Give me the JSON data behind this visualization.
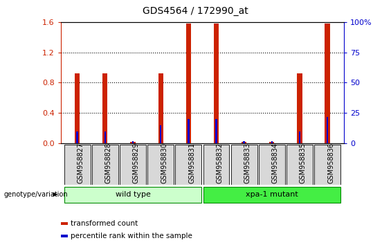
{
  "title": "GDS4564 / 172990_at",
  "samples": [
    "GSM958827",
    "GSM958828",
    "GSM958829",
    "GSM958830",
    "GSM958831",
    "GSM958832",
    "GSM958833",
    "GSM958834",
    "GSM958835",
    "GSM958836"
  ],
  "transformed_count": [
    0.92,
    0.92,
    0.02,
    0.92,
    1.58,
    1.58,
    0.02,
    0.02,
    0.92,
    1.58
  ],
  "percentile_rank_pct": [
    10,
    10,
    2,
    15,
    20,
    20,
    2,
    2,
    10,
    22
  ],
  "red_color": "#cc2200",
  "blue_color": "#0000cc",
  "ylim_left": [
    0,
    1.6
  ],
  "ylim_right": [
    0,
    100
  ],
  "yticks_left": [
    0,
    0.4,
    0.8,
    1.2,
    1.6
  ],
  "yticks_right": [
    0,
    25,
    50,
    75,
    100
  ],
  "ytick_right_labels": [
    "0",
    "25",
    "50",
    "75",
    "100%"
  ],
  "groups": [
    {
      "label": "wild type",
      "start": 0,
      "end": 5,
      "color": "#ccffcc",
      "edgecolor": "#008800"
    },
    {
      "label": "xpa-1 mutant",
      "start": 5,
      "end": 10,
      "color": "#44ee44",
      "edgecolor": "#008800"
    }
  ],
  "genotype_label": "genotype/variation",
  "legend_items": [
    {
      "color": "#cc2200",
      "label": "transformed count"
    },
    {
      "color": "#0000cc",
      "label": "percentile rank within the sample"
    }
  ],
  "red_bar_width": 0.18,
  "blue_bar_width": 0.06,
  "background_color": "#ffffff",
  "title_fontsize": 10,
  "sample_fontsize": 7,
  "grid_linestyle": ":",
  "grid_linewidth": 0.8
}
